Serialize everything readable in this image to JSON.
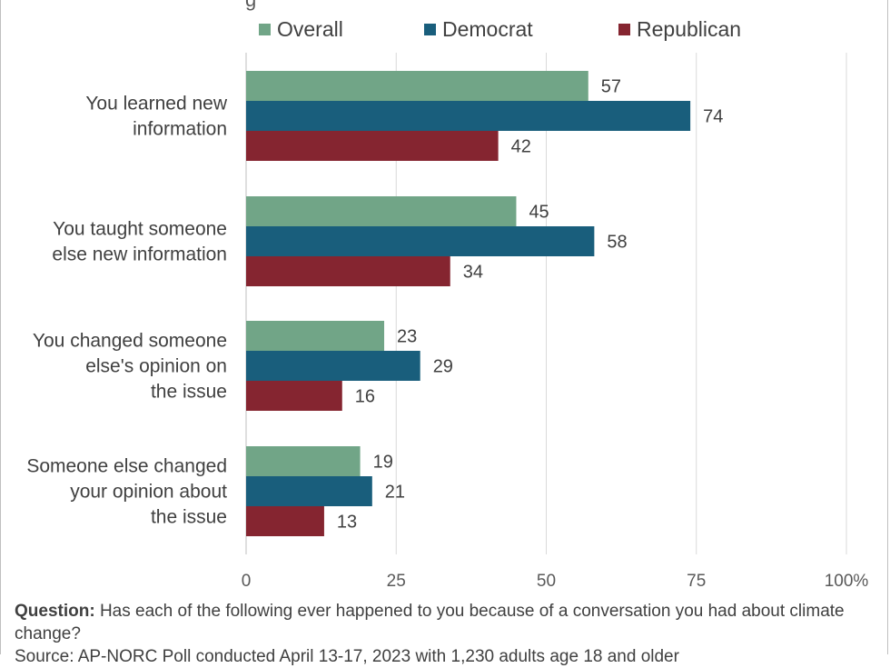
{
  "chart_data": {
    "type": "bar",
    "orientation": "horizontal",
    "categories": [
      [
        "You learned new",
        "information"
      ],
      [
        "You taught someone",
        "else new information"
      ],
      [
        "You changed someone",
        "else's opinion on",
        "the issue"
      ],
      [
        "Someone else changed",
        "your opinion about",
        "the issue"
      ]
    ],
    "series": [
      {
        "name": "Overall",
        "color": "#71a587",
        "values": [
          57,
          45,
          23,
          19
        ]
      },
      {
        "name": "Democrat",
        "color": "#195e7c",
        "values": [
          74,
          58,
          29,
          21
        ]
      },
      {
        "name": "Republican",
        "color": "#852530",
        "values": [
          42,
          34,
          16,
          13
        ]
      }
    ],
    "xlim": [
      0,
      100
    ],
    "xticks": [
      0,
      25,
      50,
      75,
      100
    ],
    "xtick_labels": [
      "0",
      "25",
      "50",
      "75",
      "100%"
    ],
    "grid": true,
    "legend_position": "top"
  },
  "top_clipped_text": "g",
  "footnote": {
    "question_label": "Question:",
    "question_text": " Has each of the following ever happened to you because of a conversation you had about climate change?",
    "source_text": "Source: AP-NORC Poll conducted April 13-17, 2023 with 1,230 adults age 18 and older"
  }
}
